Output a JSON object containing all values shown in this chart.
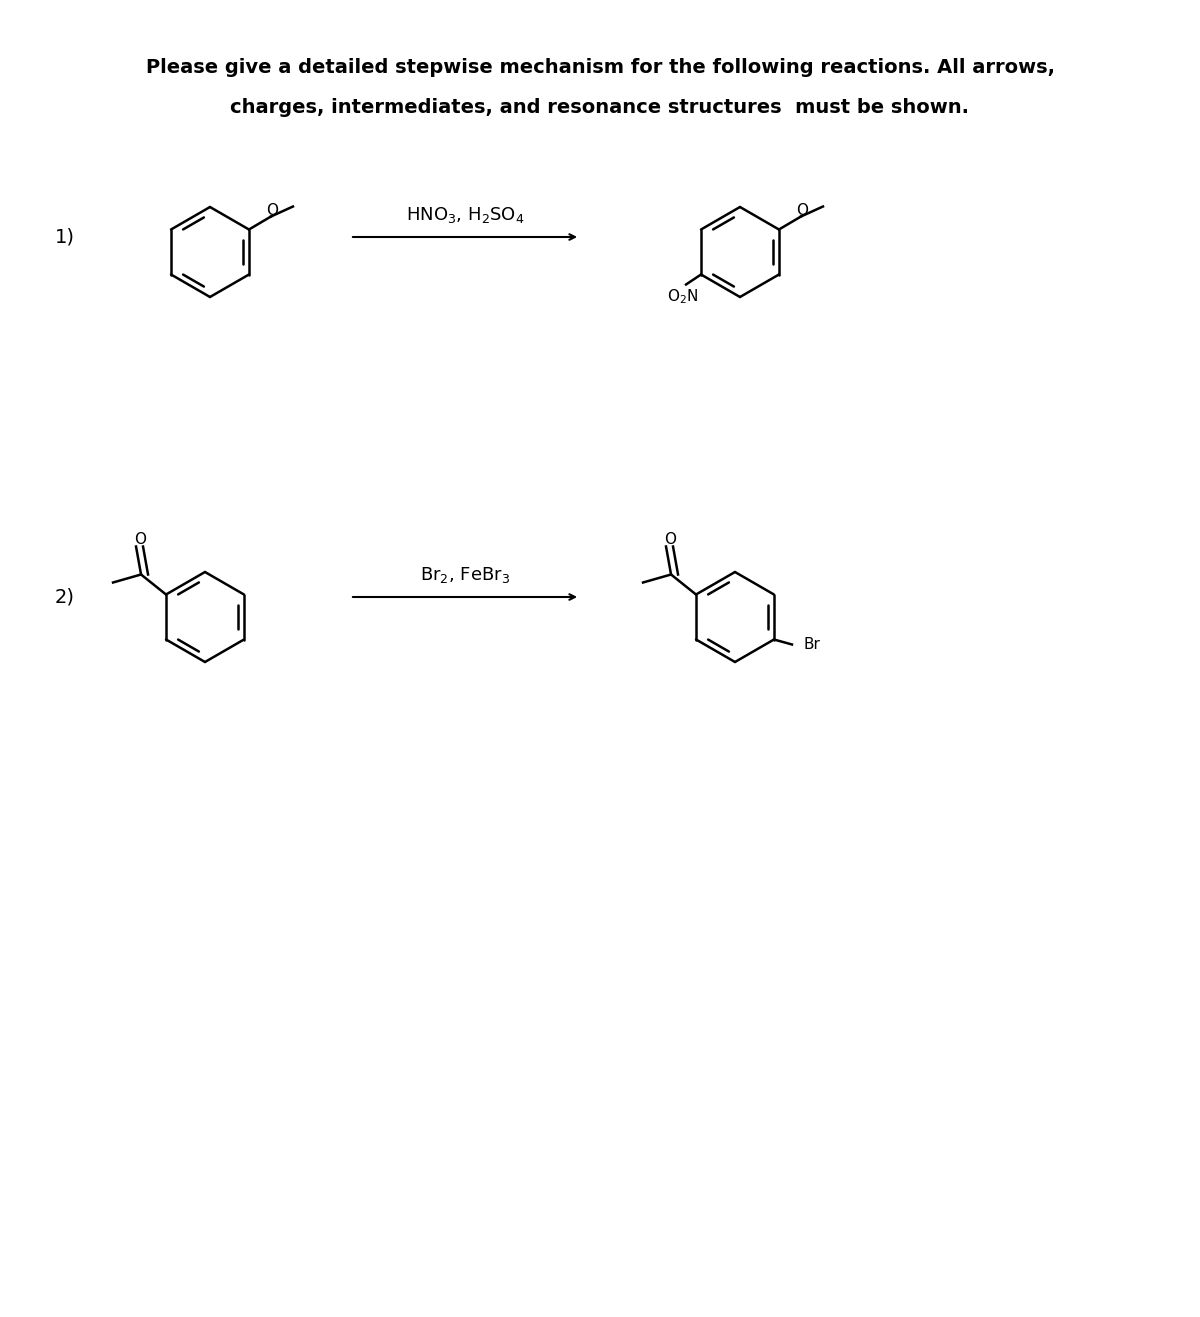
{
  "title_line1": "Please give a detailed stepwise mechanism for the following reactions. All arrows,",
  "title_line2": "charges, intermediates, and resonance structures  must be shown.",
  "rxn1_label": "1)",
  "rxn1_reagent": "HNO$_3$, H$_2$SO$_4$",
  "rxn2_label": "2)",
  "rxn2_reagent": "Br$_2$, FeBr$_3$",
  "bg_color": "#f0f0f0",
  "text_color": "#000000",
  "title_fontsize": 14,
  "label_fontsize": 14,
  "reagent_fontsize": 13,
  "struct_linewidth": 1.8
}
